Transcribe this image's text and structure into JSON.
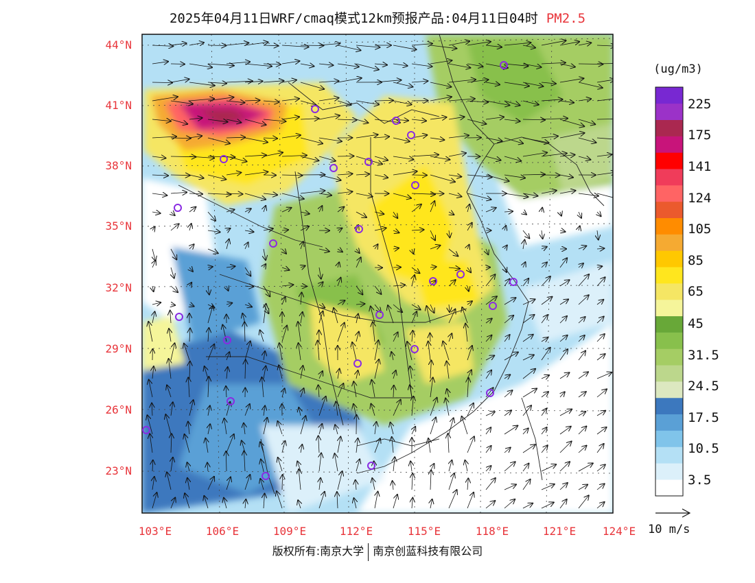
{
  "title": {
    "main": "2025年04月11日WRF/cmaq模式12km预报产品:04月11日04时",
    "pollutant": "PM2.5"
  },
  "map": {
    "lat_labels": [
      "44°N",
      "41°N",
      "38°N",
      "35°N",
      "32°N",
      "29°N",
      "26°N",
      "23°N"
    ],
    "lon_labels": [
      "103°E",
      "106°E",
      "109°E",
      "112°E",
      "115°E",
      "118°E",
      "121°E",
      "124°E"
    ]
  },
  "legend": {
    "unit": "(ug/m3)",
    "colors": [
      "#ffffff",
      "#dcf0fa",
      "#b4e0f5",
      "#80c4ea",
      "#5aa0d6",
      "#3c78be",
      "#dce8c0",
      "#bcd78c",
      "#a5cd64",
      "#88c04c",
      "#68a838",
      "#f5f59a",
      "#f5e664",
      "#ffe61e",
      "#ffc800",
      "#f5aa32",
      "#ff8c00",
      "#eb5a2d",
      "#ff6464",
      "#f03c5a",
      "#ff0000",
      "#c8147a",
      "#aa2850",
      "#9b32c8",
      "#7828d2"
    ],
    "labels": [
      "3.5",
      "10.5",
      "17.5",
      "24.5",
      "31.5",
      "45",
      "65",
      "85",
      "105",
      "124",
      "141",
      "175",
      "225"
    ],
    "vector_label": "10 m/s"
  },
  "stations_icon": "circle-marker-icon",
  "footer": {
    "rights": "版权所有:南京大学",
    "company": "南京创蓝科技有限公司"
  }
}
